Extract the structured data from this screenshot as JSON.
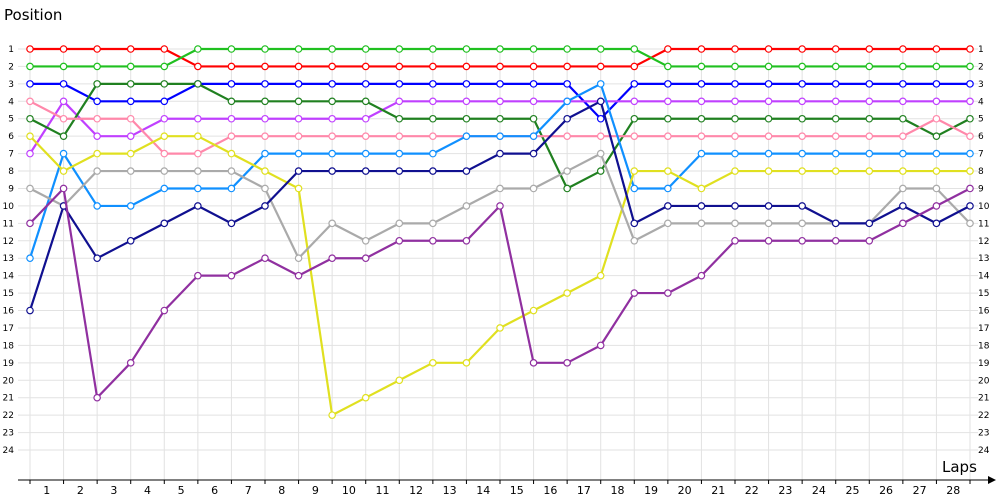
{
  "chart_data": {
    "type": "line",
    "title": "",
    "ylabel": "Position",
    "xlabel": "Laps",
    "x": [
      0,
      1,
      2,
      3,
      4,
      5,
      6,
      7,
      8,
      9,
      10,
      11,
      12,
      13,
      14,
      15,
      16,
      17,
      18,
      19,
      20,
      21,
      22,
      23,
      24,
      25,
      26,
      27,
      28
    ],
    "x_tick_labels": [
      "1",
      "2",
      "3",
      "4",
      "5",
      "6",
      "7",
      "8",
      "9",
      "10",
      "11",
      "12",
      "13",
      "14",
      "15",
      "16",
      "17",
      "18",
      "19",
      "20",
      "21",
      "22",
      "23",
      "24",
      "25",
      "26",
      "27",
      "28"
    ],
    "y_tick_labels": [
      "1",
      "2",
      "3",
      "4",
      "5",
      "6",
      "7",
      "8",
      "9",
      "10",
      "11",
      "12",
      "13",
      "14",
      "15",
      "16",
      "17",
      "18",
      "19",
      "20",
      "21",
      "22",
      "23",
      "24"
    ],
    "ylim": [
      1,
      24
    ],
    "y_inverted": true,
    "grid": true,
    "series": [
      {
        "color": "#ff0000",
        "values": [
          1,
          1,
          1,
          1,
          1,
          2,
          2,
          2,
          2,
          2,
          2,
          2,
          2,
          2,
          2,
          2,
          2,
          2,
          2,
          1,
          1,
          1,
          1,
          1,
          1,
          1,
          1,
          1,
          1
        ]
      },
      {
        "color": "#20c020",
        "values": [
          2,
          2,
          2,
          2,
          2,
          1,
          1,
          1,
          1,
          1,
          1,
          1,
          1,
          1,
          1,
          1,
          1,
          1,
          1,
          2,
          2,
          2,
          2,
          2,
          2,
          2,
          2,
          2,
          2
        ]
      },
      {
        "color": "#0000ff",
        "values": [
          3,
          3,
          4,
          4,
          4,
          3,
          3,
          3,
          3,
          3,
          3,
          3,
          3,
          3,
          3,
          3,
          3,
          5,
          3,
          3,
          3,
          3,
          3,
          3,
          3,
          3,
          3,
          3,
          3
        ]
      },
      {
        "color": "#c040ff",
        "values": [
          7,
          4,
          6,
          6,
          5,
          5,
          5,
          5,
          5,
          5,
          5,
          4,
          4,
          4,
          4,
          4,
          4,
          4,
          4,
          4,
          4,
          4,
          4,
          4,
          4,
          4,
          4,
          4,
          4
        ]
      },
      {
        "color": "#208020",
        "values": [
          5,
          6,
          3,
          3,
          3,
          3,
          4,
          4,
          4,
          4,
          4,
          5,
          5,
          5,
          5,
          5,
          9,
          8,
          5,
          5,
          5,
          5,
          5,
          5,
          5,
          5,
          5,
          6,
          5
        ]
      },
      {
        "color": "#ff88aa",
        "values": [
          4,
          5,
          5,
          5,
          7,
          7,
          6,
          6,
          6,
          6,
          6,
          6,
          6,
          6,
          6,
          6,
          6,
          6,
          6,
          6,
          6,
          6,
          6,
          6,
          6,
          6,
          6,
          5,
          6
        ]
      },
      {
        "color": "#1090ff",
        "values": [
          13,
          7,
          10,
          10,
          9,
          9,
          9,
          7,
          7,
          7,
          7,
          7,
          7,
          6,
          6,
          6,
          4,
          3,
          9,
          9,
          7,
          7,
          7,
          7,
          7,
          7,
          7,
          7,
          7
        ]
      },
      {
        "color": "#e0e020",
        "values": [
          6,
          8,
          7,
          7,
          6,
          6,
          7,
          8,
          9,
          22,
          21,
          20,
          19,
          19,
          17,
          16,
          15,
          14,
          8,
          8,
          9,
          8,
          8,
          8,
          8,
          8,
          8,
          8,
          8
        ]
      },
      {
        "color": "#aaaaaa",
        "values": [
          9,
          10,
          8,
          8,
          8,
          8,
          8,
          9,
          13,
          11,
          12,
          11,
          11,
          10,
          9,
          9,
          8,
          7,
          12,
          11,
          11,
          11,
          11,
          11,
          11,
          11,
          9,
          9,
          11
        ]
      },
      {
        "color": "#101090",
        "values": [
          16,
          10,
          13,
          12,
          11,
          10,
          11,
          10,
          8,
          8,
          8,
          8,
          8,
          8,
          7,
          7,
          5,
          4,
          11,
          10,
          10,
          10,
          10,
          10,
          11,
          11,
          10,
          11,
          10
        ]
      },
      {
        "color": "#9030a0",
        "values": [
          11,
          9,
          21,
          19,
          16,
          14,
          14,
          13,
          14,
          13,
          13,
          12,
          12,
          12,
          10,
          19,
          19,
          18,
          15,
          15,
          14,
          12,
          12,
          12,
          12,
          12,
          11,
          10,
          9
        ]
      }
    ]
  }
}
